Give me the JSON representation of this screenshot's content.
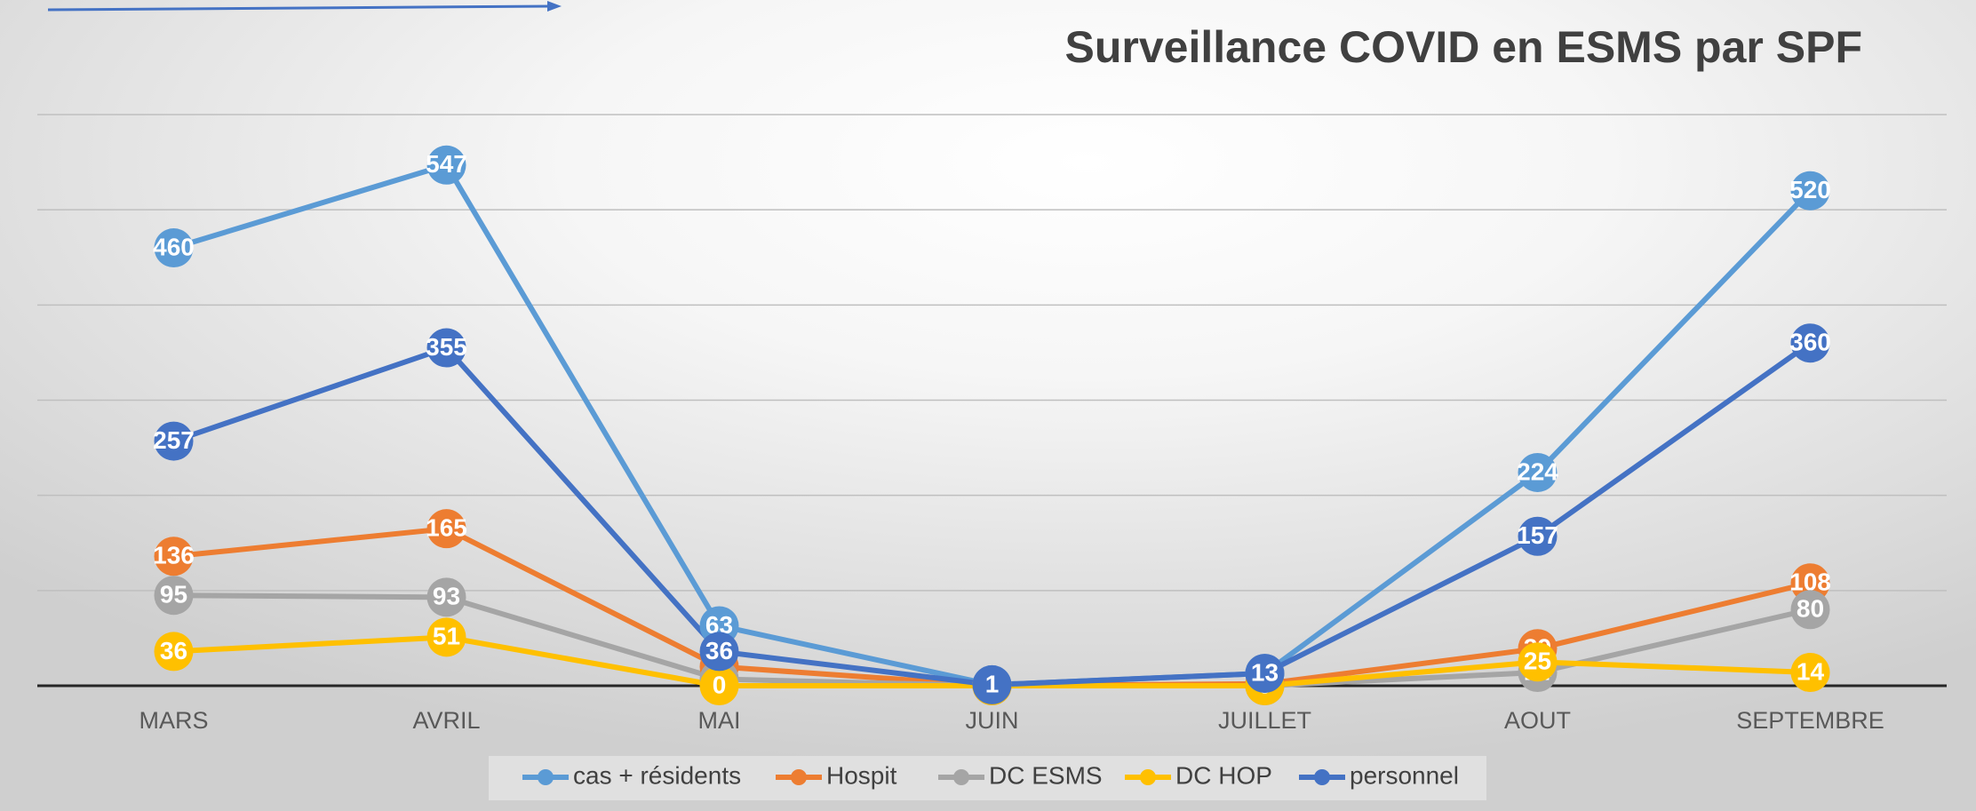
{
  "chart_data": {
    "type": "line",
    "title": "Surveillance COVID en ESMS par SPF",
    "categories": [
      "MARS",
      "AVRIL",
      "MAI",
      "JUIN",
      "JUILLET",
      "AOUT",
      "SEPTEMBRE"
    ],
    "series": [
      {
        "name": "cas + résidents",
        "color": "#5b9bd5",
        "values": [
          460,
          547,
          63,
          1,
          13,
          224,
          520
        ]
      },
      {
        "name": "Hospit",
        "color": "#ed7d31",
        "values": [
          136,
          165,
          20,
          0,
          2,
          39,
          108
        ]
      },
      {
        "name": "DC ESMS",
        "color": "#a5a5a5",
        "values": [
          95,
          93,
          7,
          0,
          0,
          14,
          80
        ]
      },
      {
        "name": "DC HOP",
        "color": "#ffc000",
        "values": [
          36,
          51,
          0,
          0,
          0,
          25,
          14
        ]
      },
      {
        "name": "personnel",
        "color": "#4472c4",
        "values": [
          257,
          355,
          36,
          1,
          13,
          157,
          360
        ]
      }
    ],
    "ylim": [
      0,
      600
    ],
    "yticks": [
      0,
      100,
      200,
      300,
      400,
      500,
      600
    ],
    "grid": true,
    "legend": "bottom"
  }
}
